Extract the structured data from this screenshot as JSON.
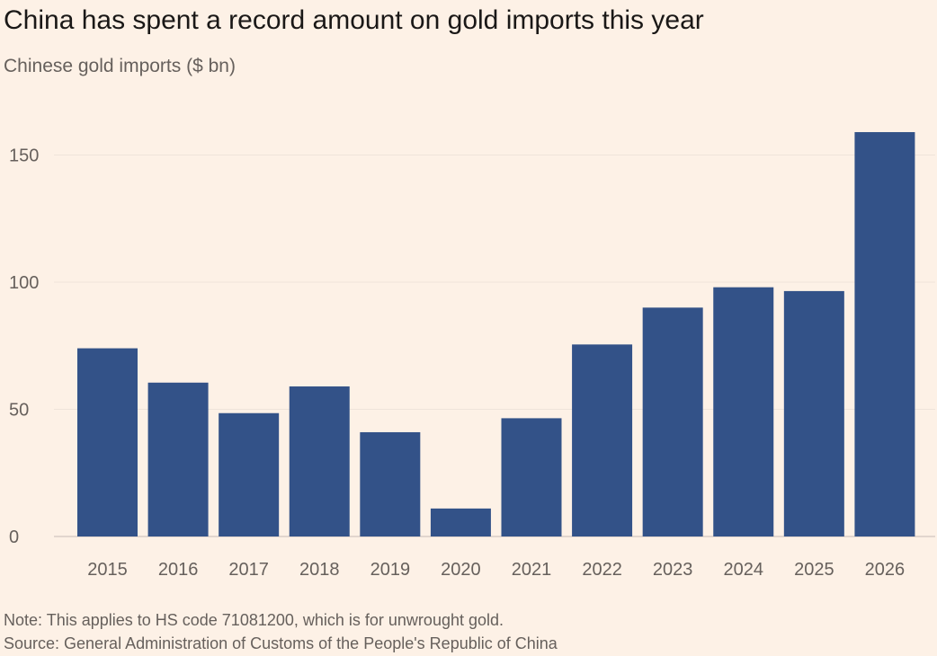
{
  "title": "China has spent a record amount on gold imports this year",
  "subtitle": "Chinese gold imports ($ bn)",
  "note": "Note: This applies to HS code 71081200, which is for unwrought gold.",
  "source": "Source: General Administration of Customs of the People's Republic of China",
  "colors": {
    "background": "#fdf1e6",
    "bar": "#335288",
    "gridline": "#efe4da",
    "baseline": "#d9cec5"
  },
  "chart_data": {
    "type": "bar",
    "title": "China has spent a record amount on gold imports this year",
    "subtitle": "Chinese gold imports ($ bn)",
    "categories": [
      "2015",
      "2016",
      "2017",
      "2018",
      "2019",
      "2020",
      "2021",
      "2022",
      "2023",
      "2024",
      "2025",
      "2026"
    ],
    "values": [
      74,
      60.5,
      48.5,
      59,
      41,
      11,
      46.5,
      75.5,
      90,
      98,
      96.5,
      159
    ],
    "yticks": [
      0,
      50,
      100,
      150
    ],
    "ylim": [
      0,
      165
    ],
    "xlabel": "",
    "ylabel": "",
    "grid": true,
    "legend": "none"
  }
}
